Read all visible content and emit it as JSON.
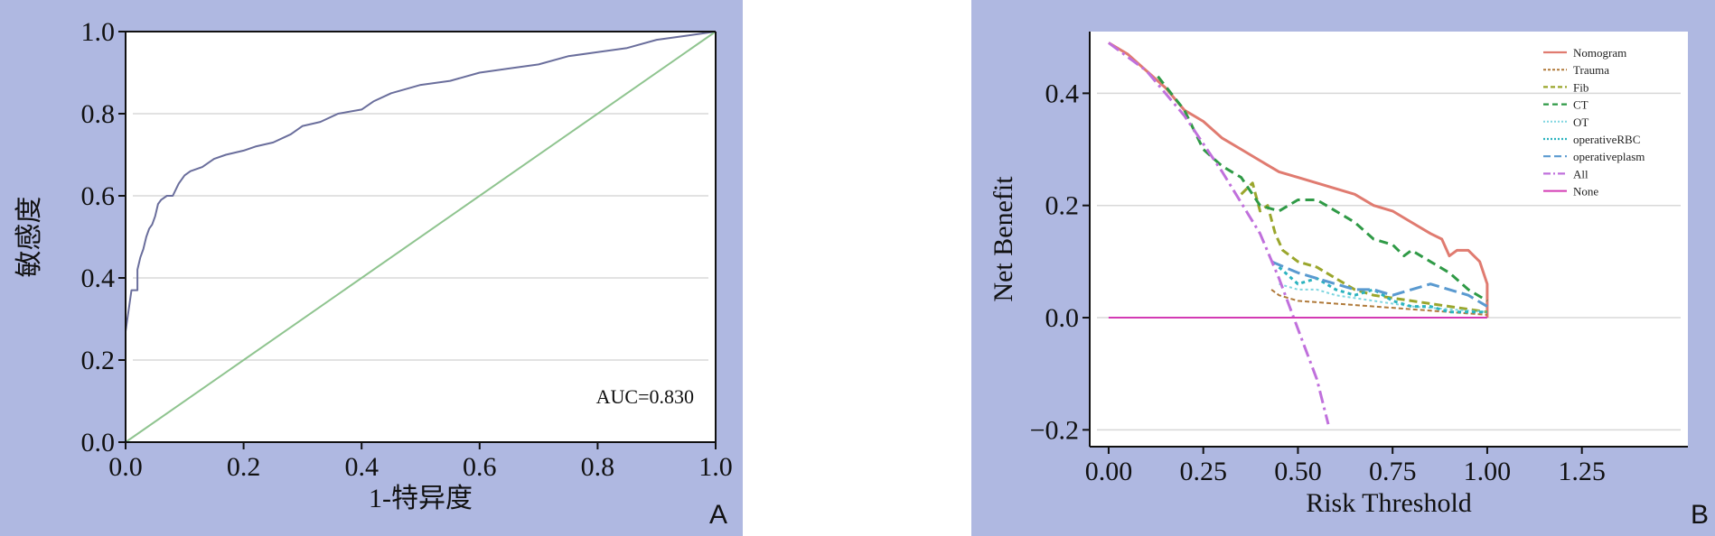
{
  "chart_data": [
    {
      "type": "line",
      "panel_label": "A",
      "title": "",
      "xlabel": "1-特异度",
      "ylabel": "敏感度",
      "xlim": [
        0,
        1
      ],
      "ylim": [
        0,
        1
      ],
      "x_ticks": [
        "0.0",
        "0.2",
        "0.4",
        "0.6",
        "0.8",
        "1.0"
      ],
      "y_ticks": [
        "0.0",
        "0.2",
        "0.4",
        "0.6",
        "0.8",
        "1.0"
      ],
      "grid": "horizontal",
      "annotation": "AUC=0.830",
      "series": [
        {
          "color": "#6a6e9c",
          "points": [
            [
              0,
              0
            ],
            [
              0,
              0.27
            ],
            [
              0.01,
              0.37
            ],
            [
              0.02,
              0.37
            ],
            [
              0.02,
              0.42
            ],
            [
              0.025,
              0.45
            ],
            [
              0.03,
              0.47
            ],
            [
              0.035,
              0.5
            ],
            [
              0.04,
              0.52
            ],
            [
              0.045,
              0.53
            ],
            [
              0.05,
              0.55
            ],
            [
              0.055,
              0.58
            ],
            [
              0.06,
              0.59
            ],
            [
              0.07,
              0.6
            ],
            [
              0.08,
              0.6
            ],
            [
              0.09,
              0.63
            ],
            [
              0.1,
              0.65
            ],
            [
              0.11,
              0.66
            ],
            [
              0.13,
              0.67
            ],
            [
              0.15,
              0.69
            ],
            [
              0.17,
              0.7
            ],
            [
              0.2,
              0.71
            ],
            [
              0.22,
              0.72
            ],
            [
              0.25,
              0.73
            ],
            [
              0.28,
              0.75
            ],
            [
              0.3,
              0.77
            ],
            [
              0.33,
              0.78
            ],
            [
              0.36,
              0.8
            ],
            [
              0.4,
              0.81
            ],
            [
              0.42,
              0.83
            ],
            [
              0.45,
              0.85
            ],
            [
              0.5,
              0.87
            ],
            [
              0.55,
              0.88
            ],
            [
              0.6,
              0.9
            ],
            [
              0.65,
              0.91
            ],
            [
              0.7,
              0.92
            ],
            [
              0.75,
              0.94
            ],
            [
              0.8,
              0.95
            ],
            [
              0.85,
              0.96
            ],
            [
              0.9,
              0.98
            ],
            [
              0.95,
              0.99
            ],
            [
              1,
              1
            ]
          ]
        },
        {
          "color": "#8fc48f",
          "points": [
            [
              0,
              0
            ],
            [
              1,
              1
            ]
          ]
        }
      ]
    },
    {
      "type": "line",
      "panel_label": "B",
      "title": "",
      "xlabel": "Risk Threshold",
      "ylabel": "Net Benefit",
      "xlim": [
        -0.05,
        1.53
      ],
      "ylim": [
        -0.23,
        0.51
      ],
      "x_ticks": [
        "0.00",
        "0.25",
        "0.50",
        "0.75",
        "1.00",
        "1.25"
      ],
      "y_ticks": [
        "0.4",
        "0.2",
        "0.0",
        "−0.2"
      ],
      "grid": "horizontal",
      "legend_position": "top-right",
      "series": [
        {
          "name": "Nomogram",
          "color": "#e07b70",
          "dash": "",
          "width": 3,
          "points": [
            [
              0,
              0.49
            ],
            [
              0.05,
              0.47
            ],
            [
              0.1,
              0.44
            ],
            [
              0.15,
              0.41
            ],
            [
              0.2,
              0.37
            ],
            [
              0.25,
              0.35
            ],
            [
              0.3,
              0.32
            ],
            [
              0.35,
              0.3
            ],
            [
              0.4,
              0.28
            ],
            [
              0.45,
              0.26
            ],
            [
              0.5,
              0.25
            ],
            [
              0.55,
              0.24
            ],
            [
              0.6,
              0.23
            ],
            [
              0.65,
              0.22
            ],
            [
              0.7,
              0.2
            ],
            [
              0.75,
              0.19
            ],
            [
              0.8,
              0.17
            ],
            [
              0.85,
              0.15
            ],
            [
              0.88,
              0.14
            ],
            [
              0.9,
              0.11
            ],
            [
              0.92,
              0.12
            ],
            [
              0.95,
              0.12
            ],
            [
              0.98,
              0.1
            ],
            [
              1.0,
              0.06
            ],
            [
              1.0,
              0
            ]
          ]
        },
        {
          "name": "Trauma",
          "color": "#b07a3a",
          "dash": "5,3",
          "width": 2,
          "points": [
            [
              0.43,
              0.05
            ],
            [
              0.45,
              0.04
            ],
            [
              0.5,
              0.03
            ],
            [
              0.6,
              0.025
            ],
            [
              0.7,
              0.02
            ],
            [
              0.8,
              0.015
            ],
            [
              0.9,
              0.01
            ],
            [
              1.0,
              0.005
            ]
          ]
        },
        {
          "name": "Fib",
          "color": "#9aa62c",
          "dash": "9,5",
          "width": 3,
          "points": [
            [
              0.35,
              0.22
            ],
            [
              0.38,
              0.24
            ],
            [
              0.4,
              0.19
            ],
            [
              0.42,
              0.2
            ],
            [
              0.44,
              0.15
            ],
            [
              0.46,
              0.12
            ],
            [
              0.5,
              0.1
            ],
            [
              0.55,
              0.09
            ],
            [
              0.6,
              0.07
            ],
            [
              0.65,
              0.05
            ],
            [
              0.7,
              0.04
            ],
            [
              0.8,
              0.03
            ],
            [
              0.9,
              0.02
            ],
            [
              1.0,
              0.01
            ]
          ]
        },
        {
          "name": "CT",
          "color": "#2f9a46",
          "dash": "10,6",
          "width": 3,
          "points": [
            [
              0.13,
              0.43
            ],
            [
              0.2,
              0.37
            ],
            [
              0.25,
              0.3
            ],
            [
              0.3,
              0.27
            ],
            [
              0.35,
              0.25
            ],
            [
              0.4,
              0.2
            ],
            [
              0.45,
              0.19
            ],
            [
              0.5,
              0.21
            ],
            [
              0.55,
              0.21
            ],
            [
              0.6,
              0.19
            ],
            [
              0.65,
              0.17
            ],
            [
              0.7,
              0.14
            ],
            [
              0.75,
              0.13
            ],
            [
              0.78,
              0.11
            ],
            [
              0.8,
              0.12
            ],
            [
              0.85,
              0.1
            ],
            [
              0.9,
              0.08
            ],
            [
              0.95,
              0.05
            ],
            [
              1.0,
              0.03
            ]
          ]
        },
        {
          "name": "OT",
          "color": "#7fd6e0",
          "dash": "3,3",
          "width": 2,
          "points": [
            [
              0.45,
              0.06
            ],
            [
              0.5,
              0.05
            ],
            [
              0.55,
              0.05
            ],
            [
              0.6,
              0.04
            ],
            [
              0.7,
              0.03
            ],
            [
              0.8,
              0.02
            ],
            [
              0.9,
              0.015
            ],
            [
              1.0,
              0.01
            ]
          ]
        },
        {
          "name": "operativeRBC",
          "color": "#2bb3bf",
          "dash": "4,4",
          "width": 3,
          "points": [
            [
              0.45,
              0.09
            ],
            [
              0.5,
              0.06
            ],
            [
              0.55,
              0.07
            ],
            [
              0.6,
              0.05
            ],
            [
              0.65,
              0.04
            ],
            [
              0.7,
              0.05
            ],
            [
              0.75,
              0.03
            ],
            [
              0.8,
              0.02
            ],
            [
              0.85,
              0.02
            ],
            [
              0.9,
              0.01
            ],
            [
              1.0,
              0.01
            ]
          ]
        },
        {
          "name": "operativeplasm",
          "color": "#5a9ad0",
          "dash": "14,6",
          "width": 3,
          "points": [
            [
              0.43,
              0.1
            ],
            [
              0.5,
              0.08
            ],
            [
              0.55,
              0.07
            ],
            [
              0.6,
              0.06
            ],
            [
              0.65,
              0.05
            ],
            [
              0.7,
              0.05
            ],
            [
              0.75,
              0.04
            ],
            [
              0.8,
              0.05
            ],
            [
              0.85,
              0.06
            ],
            [
              0.9,
              0.05
            ],
            [
              0.95,
              0.04
            ],
            [
              1.0,
              0.02
            ]
          ]
        },
        {
          "name": "All",
          "color": "#c070dc",
          "dash": "14,5,3,5",
          "width": 3,
          "points": [
            [
              0,
              0.49
            ],
            [
              0.1,
              0.44
            ],
            [
              0.2,
              0.36
            ],
            [
              0.3,
              0.26
            ],
            [
              0.4,
              0.15
            ],
            [
              0.45,
              0.07
            ],
            [
              0.5,
              -0.02
            ],
            [
              0.55,
              -0.11
            ],
            [
              0.58,
              -0.19
            ]
          ]
        },
        {
          "name": "None",
          "color": "#d33ab4",
          "dash": "",
          "width": 2,
          "points": [
            [
              0,
              0
            ],
            [
              1.0,
              0
            ]
          ]
        }
      ]
    }
  ]
}
